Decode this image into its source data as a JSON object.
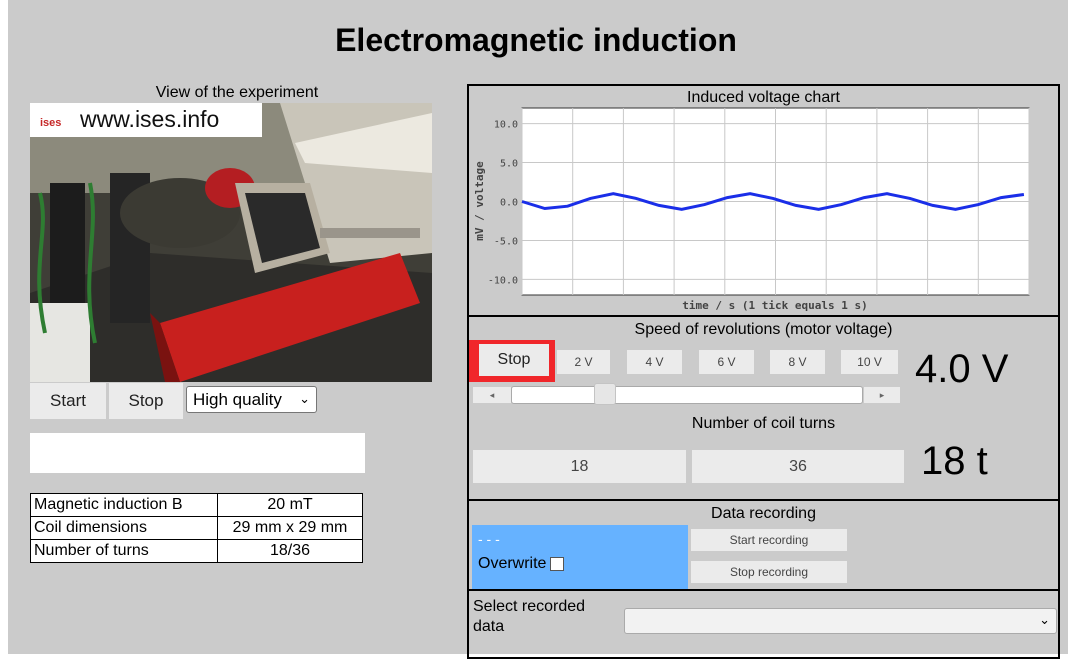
{
  "page": {
    "title": "Electromagnetic induction"
  },
  "camera": {
    "label": "View of the experiment",
    "watermark": "www.ises.info",
    "watermark_logo": "ises",
    "start_label": "Start",
    "stop_label": "Stop",
    "quality": "High quality"
  },
  "info_table": [
    {
      "key": "Magnetic induction B",
      "value": "20 mT"
    },
    {
      "key": "Coil dimensions",
      "value": "29 mm x 29 mm"
    },
    {
      "key": "Number of turns",
      "value": "18/36"
    }
  ],
  "chart": {
    "title": "Induced voltage chart",
    "ylabel": "mV / voltage",
    "xlabel": "time / s (1 tick equals 1 s)"
  },
  "chart_data": {
    "type": "line",
    "title": "Induced voltage chart",
    "xlabel": "time / s (1 tick equals 1 s)",
    "ylabel": "mV / voltage",
    "ylim": [
      -12,
      12
    ],
    "yticks": [
      "10.0",
      "5.0",
      "0.0",
      "-5.0",
      "-10.0"
    ],
    "grid": true,
    "series": [
      {
        "color": "#1a2ee8",
        "x": [
          0,
          0.45,
          0.9,
          1.35,
          1.8,
          2.25,
          2.7,
          3.15,
          3.6,
          4.05,
          4.5,
          4.95,
          5.4,
          5.85,
          6.3,
          6.75,
          7.2,
          7.65,
          8.1,
          8.55,
          9.0,
          9.45,
          9.9
        ],
        "y": [
          0.0,
          -0.9,
          -0.6,
          0.4,
          1.0,
          0.4,
          -0.5,
          -1.0,
          -0.4,
          0.5,
          1.0,
          0.4,
          -0.5,
          -1.0,
          -0.4,
          0.5,
          1.0,
          0.4,
          -0.5,
          -1.0,
          -0.4,
          0.5,
          0.9
        ]
      }
    ],
    "xlim": [
      0,
      10
    ]
  },
  "speed": {
    "title": "Speed of revolutions (motor voltage)",
    "stop_label": "Stop",
    "options": [
      "2 V",
      "4 V",
      "6 V",
      "8 V",
      "10 V"
    ],
    "value": "4.0 V",
    "slider_fraction": 0.25
  },
  "coil": {
    "title": "Number of coil turns",
    "options": [
      "18",
      "36"
    ],
    "value": "18 t"
  },
  "recording": {
    "title": "Data recording",
    "status": "- - -",
    "overwrite_label": "Overwrite",
    "start_label": "Start recording",
    "stop_label": "Stop recording"
  },
  "recorded": {
    "label": "Select recorded data",
    "selected": ""
  },
  "colors": {
    "accent_red": "#f0262a",
    "record_blue": "#66b2ff",
    "line_blue": "#1a2ee8"
  },
  "icons": {
    "dropdown": "chevron-down-icon",
    "scroll_left": "triangle-left-icon",
    "scroll_right": "triangle-right-icon"
  }
}
